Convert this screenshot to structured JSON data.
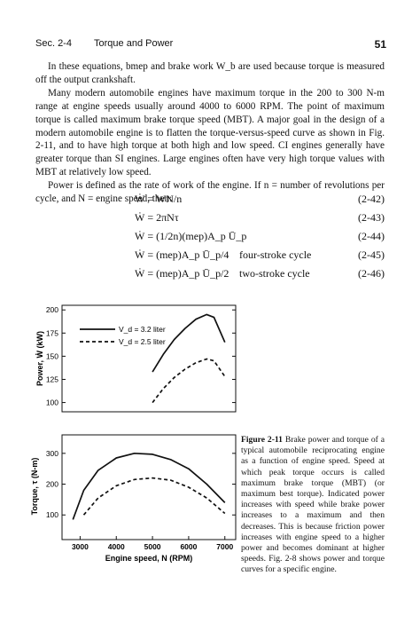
{
  "header": {
    "section": "Sec. 2-4",
    "topic": "Torque and Power",
    "page_number": "51"
  },
  "paragraphs": [
    "In these equations, bmep and brake work W_b are used because torque is measured off the output crankshaft.",
    "Many modern automobile engines have maximum torque in the 200 to 300 N-m range at engine speeds usually around 4000 to 6000 RPM. The point of maximum torque is called maximum brake torque speed (MBT). A major goal in the design of a modern automobile engine is to flatten the torque-versus-speed curve as shown in Fig. 2-11, and to have high torque at both high and low speed. CI engines generally have greater torque than SI engines. Large engines often have very high torque values with MBT at relatively low speed.",
    "Power is defined as the rate of work of the engine. If n = number of revolutions per cycle, and N = engine speed, then:"
  ],
  "equations": [
    {
      "lhs": "Ẇ = WN/n",
      "desc": "",
      "num": "(2-42)"
    },
    {
      "lhs": "Ẇ = 2πNτ",
      "desc": "",
      "num": "(2-43)"
    },
    {
      "lhs": "Ẇ = (1/2n)(mep)A_p Ū_p",
      "desc": "",
      "num": "(2-44)"
    },
    {
      "lhs": "Ẇ = (mep)A_p Ū_p/4",
      "desc": "four-stroke cycle",
      "num": "(2-45)"
    },
    {
      "lhs": "Ẇ = (mep)A_p Ū_p/2",
      "desc": "two-stroke cycle",
      "num": "(2-46)"
    }
  ],
  "chart_data": [
    {
      "type": "line",
      "ylabel": "Power, Ẇ (kW)",
      "xlim": [
        2500,
        7300
      ],
      "ylim": [
        90,
        205
      ],
      "yticks": [
        100,
        125,
        150,
        175,
        200
      ],
      "legend_position": "top-left",
      "series": [
        {
          "name": "V_d = 3.2 liter",
          "style": "solid",
          "x": [
            5000,
            5300,
            5600,
            5900,
            6200,
            6500,
            6700,
            7000
          ],
          "y": [
            133,
            152,
            168,
            180,
            190,
            195,
            192,
            165
          ]
        },
        {
          "name": "V_d = 2.5 liter",
          "style": "dashed",
          "x": [
            5000,
            5300,
            5600,
            5900,
            6200,
            6500,
            6700,
            7000
          ],
          "y": [
            100,
            115,
            127,
            136,
            143,
            147,
            145,
            128
          ]
        }
      ]
    },
    {
      "type": "line",
      "xlabel": "Engine speed, N (RPM)",
      "ylabel": "Torque, τ (N-m)",
      "xlim": [
        2500,
        7300
      ],
      "ylim": [
        20,
        360
      ],
      "yticks": [
        100,
        200,
        300
      ],
      "xticks": [
        3000,
        4000,
        5000,
        6000,
        7000
      ],
      "series": [
        {
          "name": "V_d = 3.2 liter",
          "style": "solid",
          "x": [
            2800,
            3100,
            3500,
            4000,
            4500,
            5000,
            5500,
            6000,
            6500,
            7000
          ],
          "y": [
            85,
            180,
            245,
            285,
            300,
            297,
            280,
            250,
            200,
            140
          ]
        },
        {
          "name": "V_d = 2.5 liter",
          "style": "dashed",
          "x": [
            3100,
            3500,
            4000,
            4500,
            5000,
            5500,
            6000,
            6500,
            7000
          ],
          "y": [
            100,
            155,
            195,
            215,
            220,
            213,
            190,
            155,
            105
          ]
        }
      ]
    }
  ],
  "caption": {
    "label": "Figure 2-11",
    "text": "Brake power and torque of a typical automobile reciprocating engine as a function of engine speed. Speed at which peak torque occurs is called maximum brake torque (MBT) (or maximum best torque). Indicated power increases with speed while brake power increases to a maximum and then decreases. This is because friction power increases with engine speed to a higher power and becomes dominant at higher speeds. Fig. 2-8 shows power and torque curves for a specific engine."
  }
}
